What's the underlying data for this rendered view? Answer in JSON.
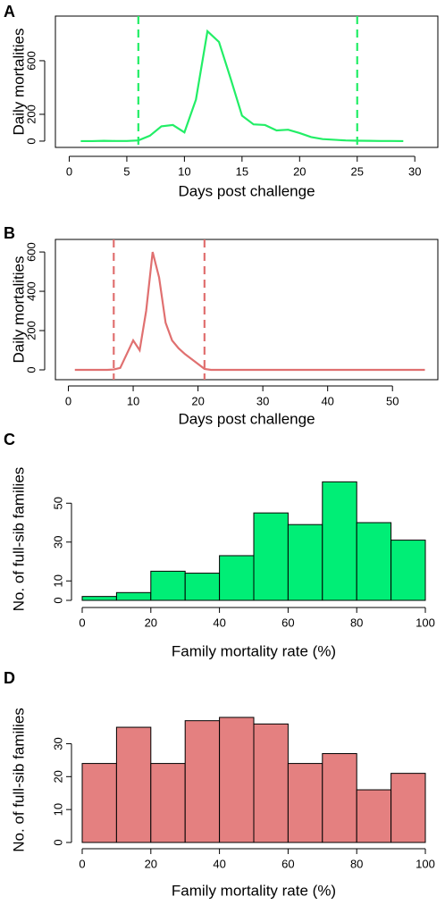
{
  "chart_data": [
    {
      "type": "line",
      "panel": "A",
      "x_label": "Days post challenge",
      "y_label": "Daily mortalities",
      "color": "#22ee66",
      "x": [
        1,
        2,
        3,
        4,
        5,
        6,
        7,
        8,
        9,
        10,
        11,
        12,
        13,
        14,
        15,
        16,
        17,
        18,
        19,
        20,
        21,
        22,
        23,
        24,
        25,
        26,
        27,
        28,
        29
      ],
      "values": [
        0,
        0,
        2,
        1,
        1,
        5,
        40,
        110,
        120,
        65,
        310,
        820,
        740,
        470,
        190,
        125,
        120,
        80,
        85,
        60,
        30,
        15,
        10,
        5,
        3,
        2,
        1,
        1,
        0
      ],
      "vlines": [
        6,
        25
      ],
      "xlim": [
        -1.2,
        32
      ],
      "xticks": [
        0,
        5,
        10,
        15,
        20,
        25,
        30
      ],
      "ylim": [
        -47,
        933
      ],
      "yticks": [
        0,
        200,
        600
      ]
    },
    {
      "type": "line",
      "panel": "B",
      "x_label": "Days post challenge",
      "y_label": "Daily mortalities",
      "color": "#e07070",
      "x": [
        1,
        2,
        3,
        4,
        5,
        6,
        7,
        8,
        9,
        10,
        11,
        12,
        13,
        14,
        15,
        16,
        17,
        18,
        19,
        20,
        21,
        22,
        23,
        24,
        25,
        26,
        27,
        28,
        29,
        30,
        31,
        32,
        33,
        34,
        35,
        36,
        37,
        38,
        39,
        40,
        41,
        42,
        43,
        44,
        45,
        46,
        47,
        48,
        49,
        50,
        51,
        52,
        53,
        54,
        55
      ],
      "values": [
        0,
        0,
        0,
        0,
        0,
        0,
        2,
        10,
        80,
        150,
        100,
        300,
        600,
        470,
        240,
        150,
        110,
        80,
        55,
        30,
        5,
        0,
        0,
        0,
        0,
        0,
        0,
        0,
        0,
        0,
        0,
        0,
        0,
        0,
        0,
        0,
        0,
        0,
        0,
        0,
        0,
        0,
        0,
        0,
        0,
        0,
        0,
        0,
        0,
        0,
        0,
        0,
        0,
        0,
        0
      ],
      "vlines": [
        7,
        21
      ],
      "xlim": [
        -2,
        57
      ],
      "xticks": [
        0,
        10,
        20,
        30,
        40,
        50
      ],
      "ylim": [
        -50,
        664
      ],
      "yticks": [
        0,
        200,
        400,
        600
      ]
    },
    {
      "type": "histogram",
      "panel": "C",
      "x_label": "Family mortality rate (%)",
      "y_label": "No. of full-sib families",
      "color": "#00ee76",
      "bins": [
        0,
        10,
        20,
        30,
        40,
        50,
        60,
        70,
        80,
        90,
        100
      ],
      "values": [
        2,
        4,
        15,
        14,
        23,
        45,
        39,
        61,
        40,
        31
      ],
      "xlim": [
        0,
        100
      ],
      "xticks": [
        0,
        20,
        40,
        60,
        80,
        100
      ],
      "ylim": [
        0,
        63
      ],
      "yticks": [
        0,
        10,
        30,
        50
      ]
    },
    {
      "type": "histogram",
      "panel": "D",
      "x_label": "Family mortality rate (%)",
      "y_label": "No. of full-sib families",
      "color": "#e48080",
      "bins": [
        0,
        10,
        20,
        30,
        40,
        50,
        60,
        70,
        80,
        90,
        100
      ],
      "values": [
        24,
        35,
        24,
        37,
        38,
        36,
        24,
        27,
        16,
        21
      ],
      "xlim": [
        0,
        100
      ],
      "xticks": [
        0,
        20,
        40,
        60,
        80,
        100
      ],
      "ylim": [
        0,
        38
      ],
      "yticks": [
        0,
        10,
        20,
        30
      ]
    }
  ]
}
